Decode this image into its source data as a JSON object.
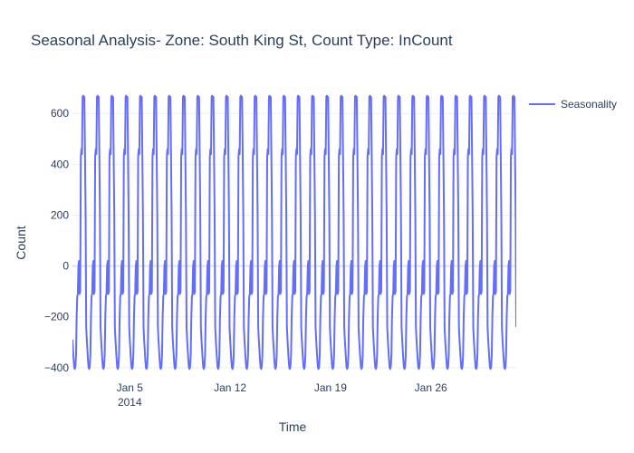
{
  "chart_data": {
    "type": "line",
    "title": "Seasonal Analysis- Zone: South King St, Count Type: InCount",
    "xlabel": "Time",
    "ylabel": "Count",
    "x_range": [
      "2014-01-01T00:00",
      "2014-01-31T23:00"
    ],
    "ylim": [
      -415,
      690
    ],
    "y_ticks": [
      -400,
      -200,
      0,
      200,
      400,
      600
    ],
    "x_ticks": [
      {
        "date": "2014-01-05",
        "label": "Jan 5",
        "sublabel": "2014"
      },
      {
        "date": "2014-01-12",
        "label": "Jan 12",
        "sublabel": ""
      },
      {
        "date": "2014-01-19",
        "label": "Jan 19",
        "sublabel": ""
      },
      {
        "date": "2014-01-26",
        "label": "Jan 26",
        "sublabel": ""
      }
    ],
    "grid": true,
    "legend_position": "top-right",
    "series": [
      {
        "name": "Seasonality",
        "color": "#636efa",
        "period": "daily",
        "start": "2014-01-01T00:00",
        "end": "2014-01-31T23:00",
        "daily_pattern": [
          -290,
          -330,
          -370,
          -400,
          -405,
          -395,
          -350,
          -200,
          -120,
          -110,
          0,
          20,
          -110,
          -100,
          430,
          460,
          440,
          665,
          670,
          660,
          665,
          440,
          200,
          -240
        ]
      }
    ]
  }
}
